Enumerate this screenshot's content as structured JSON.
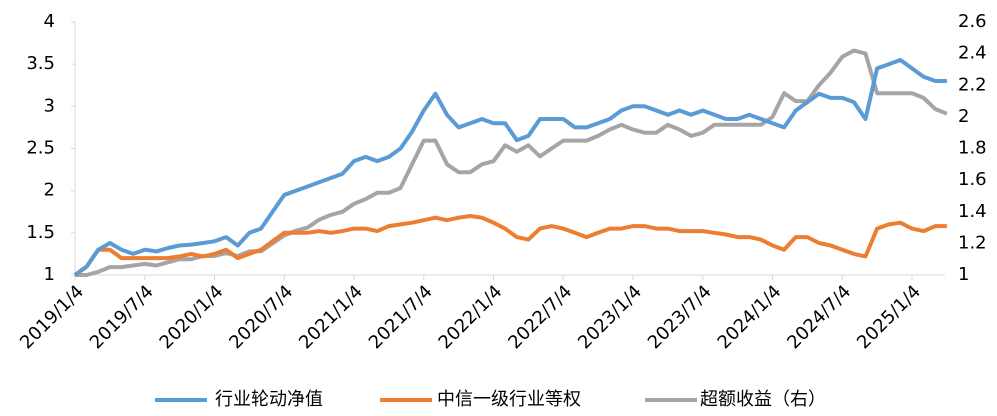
{
  "chart_data": {
    "type": "line",
    "x": [
      "2019/1/4",
      null,
      null,
      null,
      null,
      null,
      "2019/7/4",
      null,
      null,
      null,
      null,
      null,
      "2020/1/4",
      null,
      null,
      null,
      null,
      null,
      "2020/7/4",
      null,
      null,
      null,
      null,
      null,
      "2021/1/4",
      null,
      null,
      null,
      null,
      null,
      "2021/7/4",
      null,
      null,
      null,
      null,
      null,
      "2022/1/4",
      null,
      null,
      null,
      null,
      null,
      "2022/7/4",
      null,
      null,
      null,
      null,
      null,
      "2023/1/4",
      null,
      null,
      null,
      null,
      null,
      "2023/7/4",
      null,
      null,
      null,
      null,
      null,
      "2024/1/4",
      null,
      null,
      null,
      null,
      null,
      "2024/7/4",
      null,
      null,
      null,
      null,
      null,
      "2025/1/4",
      null,
      null,
      null
    ],
    "series": [
      {
        "name": "行业轮动净值",
        "color": "#5b9bd5",
        "values": [
          1.0,
          1.1,
          1.3,
          1.38,
          1.3,
          1.25,
          1.3,
          1.28,
          1.32,
          1.35,
          1.36,
          1.38,
          1.4,
          1.45,
          1.35,
          1.5,
          1.55,
          1.75,
          1.95,
          2.0,
          2.05,
          2.1,
          2.15,
          2.2,
          2.35,
          2.4,
          2.35,
          2.4,
          2.5,
          2.7,
          2.95,
          3.15,
          2.9,
          2.75,
          2.8,
          2.85,
          2.8,
          2.8,
          2.6,
          2.65,
          2.85,
          2.85,
          2.85,
          2.75,
          2.75,
          2.8,
          2.85,
          2.95,
          3.0,
          3.0,
          2.95,
          2.9,
          2.95,
          2.9,
          2.95,
          2.9,
          2.85,
          2.85,
          2.9,
          2.85,
          2.8,
          2.75,
          2.95,
          3.05,
          3.15,
          3.1,
          3.1,
          3.05,
          2.85,
          3.45,
          3.5,
          3.55,
          3.45,
          3.35,
          3.3,
          3.3
        ]
      },
      {
        "name": "中信一级行业等权",
        "color": "#ed7d31",
        "values": [
          1.0,
          1.1,
          1.3,
          1.3,
          1.2,
          1.2,
          1.2,
          1.2,
          1.2,
          1.22,
          1.25,
          1.22,
          1.25,
          1.3,
          1.2,
          1.25,
          1.3,
          1.4,
          1.5,
          1.5,
          1.5,
          1.52,
          1.5,
          1.52,
          1.55,
          1.55,
          1.52,
          1.58,
          1.6,
          1.62,
          1.65,
          1.68,
          1.65,
          1.68,
          1.7,
          1.68,
          1.62,
          1.55,
          1.45,
          1.42,
          1.55,
          1.58,
          1.55,
          1.5,
          1.45,
          1.5,
          1.55,
          1.55,
          1.58,
          1.58,
          1.55,
          1.55,
          1.52,
          1.52,
          1.52,
          1.5,
          1.48,
          1.45,
          1.45,
          1.42,
          1.35,
          1.3,
          1.45,
          1.45,
          1.38,
          1.35,
          1.3,
          1.25,
          1.22,
          1.55,
          1.6,
          1.62,
          1.55,
          1.52,
          1.58,
          1.58
        ]
      },
      {
        "name": "超额收益（右）",
        "color": "#a5a5a5",
        "axis": "y2",
        "values": [
          1.0,
          1.0,
          1.02,
          1.05,
          1.05,
          1.06,
          1.07,
          1.06,
          1.08,
          1.1,
          1.1,
          1.12,
          1.12,
          1.14,
          1.12,
          1.15,
          1.15,
          1.2,
          1.25,
          1.28,
          1.3,
          1.35,
          1.38,
          1.4,
          1.45,
          1.48,
          1.52,
          1.52,
          1.55,
          1.7,
          1.85,
          1.85,
          1.7,
          1.65,
          1.65,
          1.7,
          1.72,
          1.82,
          1.78,
          1.82,
          1.75,
          1.8,
          1.85,
          1.85,
          1.85,
          1.88,
          1.92,
          1.95,
          1.92,
          1.9,
          1.9,
          1.95,
          1.92,
          1.88,
          1.9,
          1.95,
          1.95,
          1.95,
          1.95,
          1.95,
          2.0,
          2.15,
          2.1,
          2.1,
          2.2,
          2.28,
          2.38,
          2.42,
          2.4,
          2.15,
          2.15,
          2.15,
          2.15,
          2.12,
          2.05,
          2.02
        ]
      }
    ],
    "ylim": [
      1,
      4
    ],
    "yticks": [
      1,
      1.5,
      2,
      2.5,
      3,
      3.5,
      4
    ],
    "y2lim": [
      1,
      2.6
    ],
    "y2ticks": [
      1,
      1.2,
      1.4,
      1.6,
      1.8,
      2,
      2.2,
      2.4,
      2.6
    ],
    "legend": "bottom"
  }
}
